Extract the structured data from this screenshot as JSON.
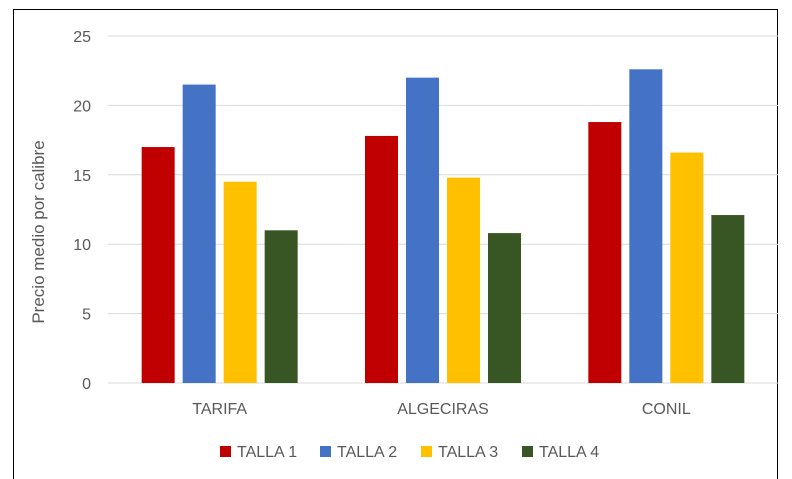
{
  "chart_data": {
    "type": "bar",
    "title": "",
    "xlabel": "",
    "ylabel": "Precio medio por calibre",
    "ylim": [
      0,
      25
    ],
    "yticks": [
      0,
      5,
      10,
      15,
      20,
      25
    ],
    "grid": true,
    "legend_position": "bottom",
    "categories": [
      "TARIFA",
      "ALGECIRAS",
      "CONIL"
    ],
    "series": [
      {
        "name": "TALLA 1",
        "color": "#c00000",
        "values": [
          17.0,
          17.8,
          18.8
        ]
      },
      {
        "name": "TALLA 2",
        "color": "#4472c4",
        "values": [
          21.5,
          22.0,
          22.6
        ]
      },
      {
        "name": "TALLA 3",
        "color": "#ffc000",
        "values": [
          14.5,
          14.8,
          16.6
        ]
      },
      {
        "name": "TALLA 4",
        "color": "#375623",
        "values": [
          11.0,
          10.8,
          12.1
        ]
      }
    ]
  }
}
